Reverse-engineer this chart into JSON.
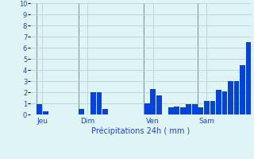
{
  "xlabel": "Précipitations 24h ( mm )",
  "ylim": [
    0,
    10
  ],
  "yticks": [
    0,
    1,
    2,
    3,
    4,
    5,
    6,
    7,
    8,
    9,
    10
  ],
  "background_color": "#dff5f5",
  "bar_color": "#0044dd",
  "grid_color": "#b0cccc",
  "vline_color": "#7799aa",
  "values": [
    0,
    0.9,
    0.3,
    0,
    0,
    0,
    0,
    0,
    0.5,
    0,
    2.0,
    2.0,
    0.5,
    0,
    0,
    0,
    0,
    0,
    0,
    1.0,
    2.3,
    1.75,
    0,
    0.65,
    0.7,
    0.65,
    0.9,
    0.9,
    0.65,
    1.2,
    1.25,
    2.2,
    2.1,
    3.0,
    3.0,
    4.4,
    6.5
  ],
  "day_labels": [
    {
      "label": "Jeu",
      "xpos_data": 1.5,
      "vline": 0.5
    },
    {
      "label": "Dim",
      "xpos_data": 9.0,
      "vline": 7.5
    },
    {
      "label": "Ven",
      "xpos_data": 20.0,
      "vline": 18.5
    },
    {
      "label": "Sam",
      "xpos_data": 29.0,
      "vline": 27.5
    }
  ],
  "xlabel_fontsize": 7,
  "tick_fontsize": 6,
  "label_fontsize": 6.5,
  "label_color": "#2244cc"
}
